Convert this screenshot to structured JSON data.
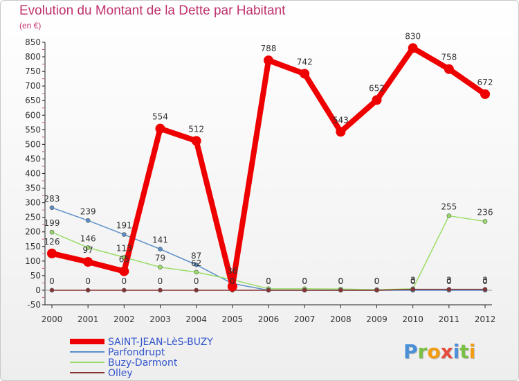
{
  "title": "Evolution du Montant de la Dette par Habitant",
  "unit": "(en €)",
  "logo": {
    "text": "Proxiti",
    "letters": [
      "P",
      "r",
      "o",
      "x",
      "i",
      "t",
      "i"
    ],
    "colors": [
      "#4a90d9",
      "#7ac043",
      "#f39c12",
      "#e74c3c",
      "#4a90d9",
      "#7ac043",
      "#f39c12"
    ]
  },
  "chart_data": {
    "type": "line",
    "title": "Evolution du Montant de la Dette par Habitant",
    "ylabel": "(en €)",
    "xlabel": "",
    "x": [
      "2000",
      "2001",
      "2002",
      "2003",
      "2004",
      "2005",
      "2006",
      "2007",
      "2008",
      "2009",
      "2010",
      "2011",
      "2012"
    ],
    "ylim": [
      -50,
      850
    ],
    "yticks": [
      -50,
      0,
      50,
      100,
      150,
      200,
      250,
      300,
      350,
      400,
      450,
      500,
      550,
      600,
      650,
      700,
      750,
      800,
      850
    ],
    "grid": false,
    "legend_position": "bottom-left",
    "series": [
      {
        "name": "SAINT-JEAN-LèS-BUZY",
        "color": "#ee0000",
        "emphasis": true,
        "values": [
          126,
          97,
          65,
          554,
          512,
          13,
          788,
          742,
          543,
          652,
          830,
          758,
          672
        ],
        "labels": [
          "126",
          "97",
          "65",
          "554",
          "512",
          "",
          "788",
          "742",
          "543",
          "652",
          "830",
          "758",
          "672"
        ]
      },
      {
        "name": "Parfondrupt",
        "color": "#5a8ec8",
        "values": [
          283,
          239,
          191,
          141,
          87,
          23,
          0,
          0,
          0,
          0,
          0,
          0,
          0
        ],
        "labels": [
          "283",
          "239",
          "191",
          "141",
          "87",
          "",
          "0",
          "0",
          "0",
          "0",
          "0",
          "0",
          "0"
        ]
      },
      {
        "name": "Buzy-Darmont",
        "color": "#99dd66",
        "values": [
          199,
          146,
          113,
          79,
          62,
          36,
          5,
          5,
          4,
          2,
          5,
          255,
          236
        ],
        "labels": [
          "199",
          "146",
          "113",
          "79",
          "62",
          "36",
          "",
          "",
          "",
          "",
          "",
          "255",
          "236"
        ]
      },
      {
        "name": "Olley",
        "color": "#883333",
        "values": [
          0,
          0,
          0,
          0,
          0,
          0,
          0,
          0,
          0,
          0,
          3,
          3,
          3
        ],
        "labels": [
          "0",
          "0",
          "0",
          "0",
          "0",
          "0",
          "0",
          "0",
          "0",
          "0",
          "3",
          "3",
          "3"
        ]
      }
    ]
  }
}
